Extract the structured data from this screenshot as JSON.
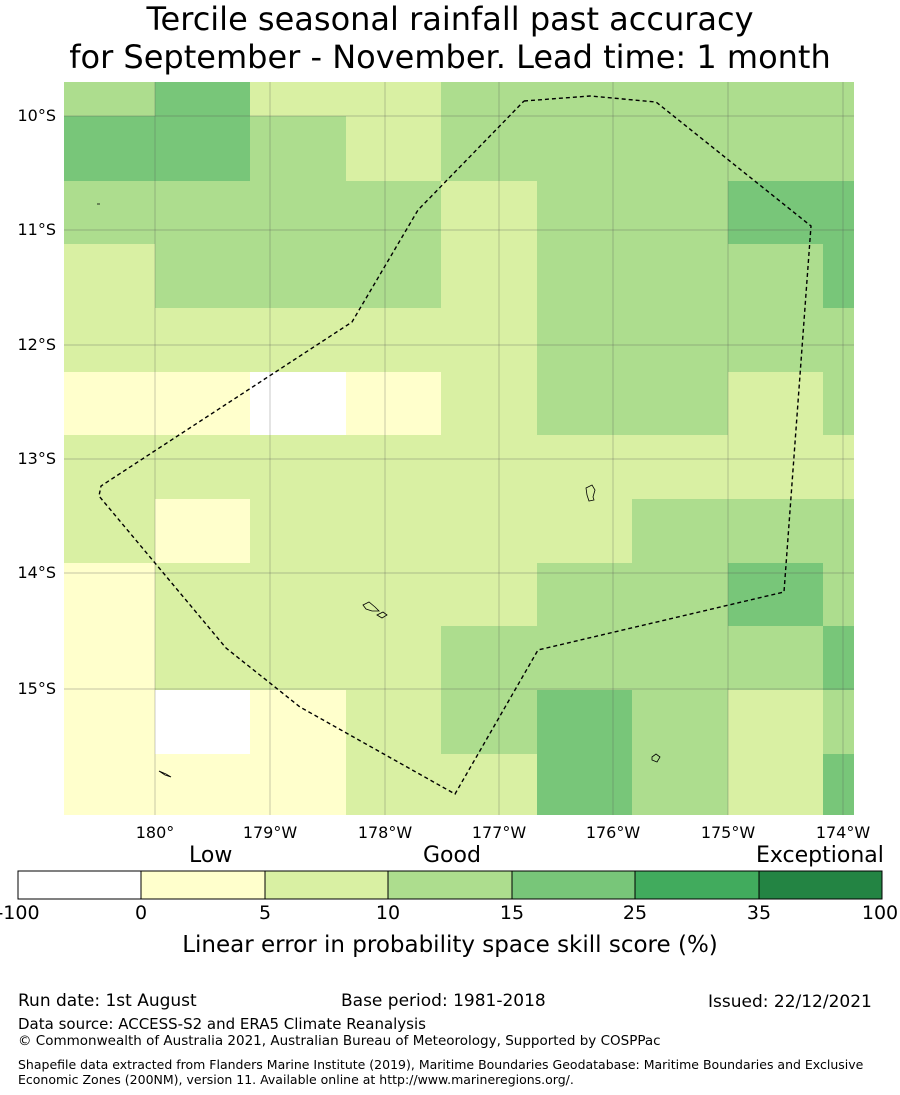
{
  "title": {
    "line1": "Tercile seasonal rainfall past accuracy",
    "line2": "for September - November. Lead time: 1 month"
  },
  "map": {
    "lat_labels": [
      "10°S",
      "11°S",
      "12°S",
      "13°S",
      "14°S",
      "15°S"
    ],
    "lon_labels": [
      "180°",
      "179°W",
      "178°W",
      "177°W",
      "176°W",
      "175°W",
      "174°W"
    ],
    "colors": {
      "c0": "#ffffff",
      "c1": "#ffffcc",
      "c2": "#d9f0a3",
      "c3": "#addd8e",
      "c4": "#78c679",
      "c5": "#41ab5d",
      "c6": "#238443"
    },
    "boundary": "dashed EEZ outline"
  },
  "colorbar": {
    "categories": [
      "Low",
      "Good",
      "Exceptional"
    ],
    "ticks": [
      "-100",
      "0",
      "5",
      "10",
      "15",
      "25",
      "35",
      "100"
    ],
    "title": "Linear error in probability space skill score (%)"
  },
  "footer": {
    "run_date": "Run date: 1st August",
    "base_period": "Base period: 1981-2018",
    "issued": "Issued: 22/12/2021",
    "data_source": "Data source: ACCESS-S2 and ERA5 Climate Reanalysis",
    "copyright": "© Commonwealth of Australia 2021, Australian Bureau of Meteorology, Supported by COSPPac",
    "shapefile": "Shapefile data extracted from Flanders Marine Institute (2019), Maritime Boundaries Geodatabase: Maritime Boundaries and Exclusive Economic Zones (200NM), version 11. Available online at http://www.marineregions.org/."
  }
}
